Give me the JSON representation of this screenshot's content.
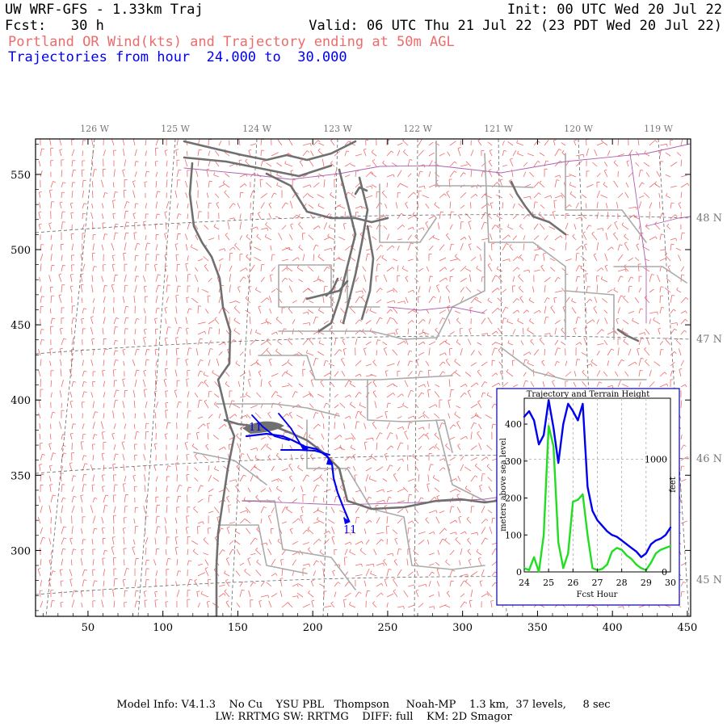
{
  "header": {
    "line1_left": "UW WRF-GFS - 1.33km Traj",
    "line1_right": "Init: 00 UTC Wed 20 Jul 22",
    "line2_left": "Fcst:   30 h",
    "line2_right": "Valid: 06 UTC Thu 21 Jul 22 (23 PDT Wed 20 Jul 22)",
    "line3": "Portland OR Wind(kts) and Trajectory ending at 50m AGL",
    "line4": "Trajectories from hour  24.000 to  30.000"
  },
  "map": {
    "lon_labels": [
      "126 W",
      "125 W",
      "124 W",
      "123 W",
      "122 W",
      "121 W",
      "120 W",
      "119 W"
    ],
    "lat_labels": [
      "48 N",
      "47 N",
      "46 N",
      "45 N"
    ],
    "x_ticks": [
      "50",
      "100",
      "150",
      "200",
      "250",
      "300",
      "350",
      "400",
      "450"
    ],
    "y_ticks": [
      "550",
      "500",
      "450",
      "400",
      "350",
      "300"
    ],
    "traj_start_label": "11",
    "traj_end_label": "11",
    "colors": {
      "wind_barbs": "#ee6b6b",
      "coast": "#707070",
      "counties": "#aaaaaa",
      "state_lines": "#b060b0",
      "trajectory": "#0000ee"
    }
  },
  "inset": {
    "title": "Trajectory and Terrain Height",
    "ylabel_left": "meters above sea level",
    "ylabel_right": "feet",
    "xlabel": "Fcst Hour",
    "x_ticks": [
      "24",
      "25",
      "26",
      "27",
      "28",
      "29",
      "30"
    ],
    "y_ticks_left": [
      "0",
      "100",
      "200",
      "300",
      "400"
    ],
    "y_ticks_right": [
      "0",
      "1000"
    ]
  },
  "chart_data": {
    "type": "line",
    "title": "Trajectory and Terrain Height",
    "xlabel": "Fcst Hour",
    "ylabel": "meters above sea level",
    "xlim": [
      24,
      30
    ],
    "ylim": [
      0,
      470
    ],
    "series": [
      {
        "color": "#0000ee",
        "x": [
          24.0,
          24.2,
          24.4,
          24.6,
          24.8,
          25.0,
          25.2,
          25.4,
          25.6,
          25.8,
          26.0,
          26.2,
          26.4,
          26.6,
          26.8,
          27.0,
          27.2,
          27.4,
          27.6,
          27.8,
          28.0,
          28.2,
          28.4,
          28.6,
          28.8,
          29.0,
          29.2,
          29.4,
          29.6,
          29.8,
          30.0
        ],
        "y": [
          420,
          435,
          410,
          345,
          370,
          465,
          390,
          295,
          400,
          455,
          435,
          410,
          455,
          230,
          165,
          140,
          125,
          110,
          100,
          95,
          85,
          75,
          65,
          55,
          40,
          50,
          75,
          85,
          90,
          100,
          120
        ]
      },
      {
        "color": "#22dd22",
        "x": [
          24.0,
          24.2,
          24.4,
          24.6,
          24.8,
          25.0,
          25.2,
          25.4,
          25.6,
          25.8,
          26.0,
          26.2,
          26.4,
          26.6,
          26.8,
          27.0,
          27.2,
          27.4,
          27.6,
          27.8,
          28.0,
          28.2,
          28.4,
          28.6,
          28.8,
          29.0,
          29.2,
          29.4,
          29.6,
          29.8,
          30.0
        ],
        "y": [
          10,
          5,
          40,
          0,
          100,
          395,
          340,
          80,
          10,
          50,
          190,
          195,
          210,
          100,
          10,
          5,
          8,
          20,
          55,
          65,
          60,
          45,
          35,
          20,
          10,
          5,
          25,
          50,
          60,
          65,
          70
        ]
      }
    ]
  }
}
